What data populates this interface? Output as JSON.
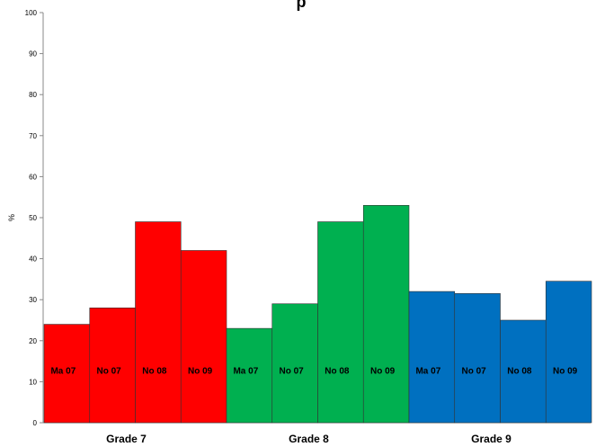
{
  "chart_data": {
    "type": "bar",
    "title": "p",
    "ylabel": "%",
    "ylim": [
      0,
      100
    ],
    "yticks": [
      0,
      10,
      20,
      30,
      40,
      50,
      60,
      70,
      80,
      90,
      100
    ],
    "grid": false,
    "bars": [
      {
        "label": "Ma 07",
        "value": 24,
        "group": "Grade 7"
      },
      {
        "label": "No 07",
        "value": 28,
        "group": "Grade 7"
      },
      {
        "label": "No 08",
        "value": 49,
        "group": "Grade 7"
      },
      {
        "label": "No 09",
        "value": 42,
        "group": "Grade 7"
      },
      {
        "label": "Ma 07",
        "value": 23,
        "group": "Grade 8"
      },
      {
        "label": "No 07",
        "value": 29,
        "group": "Grade 8"
      },
      {
        "label": "No 08",
        "value": 49,
        "group": "Grade 8"
      },
      {
        "label": "No 09",
        "value": 53,
        "group": "Grade 8"
      },
      {
        "label": "Ma 07",
        "value": 32,
        "group": "Grade 9"
      },
      {
        "label": "No 07",
        "value": 31.5,
        "group": "Grade 9"
      },
      {
        "label": "No  08",
        "value": 25,
        "group": "Grade 9"
      },
      {
        "label": "No 09",
        "value": 34.5,
        "group": "Grade 9"
      }
    ],
    "groups": [
      {
        "name": "Grade 7",
        "color": "#ff0000"
      },
      {
        "name": "Grade 8",
        "color": "#00b050"
      },
      {
        "name": "Grade 9",
        "color": "#0070c0"
      }
    ]
  }
}
